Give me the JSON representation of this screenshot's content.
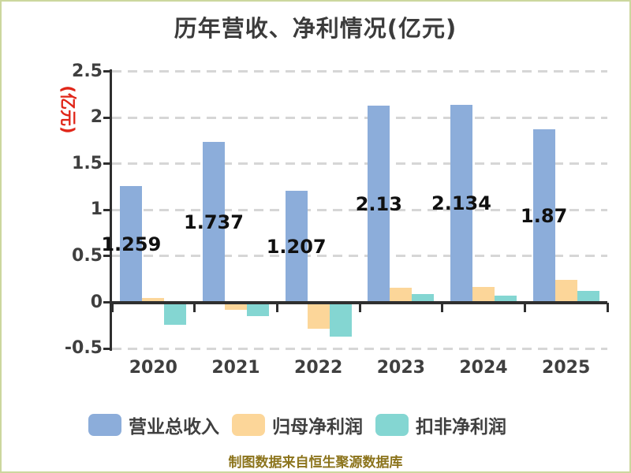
{
  "page": {
    "background": "#ffffff",
    "border_color": "#ccd79e"
  },
  "footer": {
    "text": "制图数据来自恒生聚源数据库",
    "color": "#8c741c"
  },
  "chart_data": {
    "type": "bar",
    "title": "历年营收、净利情况(亿元)",
    "title_color": "#3b3b3b",
    "ylabel": "(亿元)",
    "ylabel_color": "#e02619",
    "xlabel": "",
    "categories": [
      "2020",
      "2021",
      "2022",
      "2023",
      "2024",
      "2025"
    ],
    "series": [
      {
        "key": "total-operating-revenue",
        "name": "营业总收入",
        "color": "#8cadda",
        "values": [
          1.259,
          1.737,
          1.207,
          2.13,
          2.134,
          1.87
        ],
        "value_labels": [
          "1.259",
          "1.737",
          "1.207",
          "2.13",
          "2.134",
          "1.87"
        ]
      },
      {
        "key": "net-profit-attributable-to-parent",
        "name": "归母净利润",
        "color": "#fcd699",
        "values": [
          0.05,
          -0.08,
          -0.29,
          0.16,
          0.17,
          0.24
        ]
      },
      {
        "key": "non-recurring-net-profit",
        "name": "扣非净利润",
        "color": "#84d6d2",
        "values": [
          -0.24,
          -0.15,
          -0.37,
          0.09,
          0.07,
          0.12
        ]
      }
    ],
    "ylim": [
      -0.5,
      2.5
    ],
    "y_ticks": [
      2.5,
      2,
      1.5,
      1,
      0.5,
      0,
      -0.5
    ],
    "y_tick_labels": [
      "2.5",
      "2",
      "1.5",
      "1",
      "0.5",
      "0",
      "-0.5"
    ],
    "grid": "horizontal-dashed",
    "grid_color": "#d6d6d6",
    "axis_color": "#2f2f2f",
    "tick_label_color": "#3f3f3f",
    "value_label_color": "#101010",
    "legend_position": "bottom"
  }
}
